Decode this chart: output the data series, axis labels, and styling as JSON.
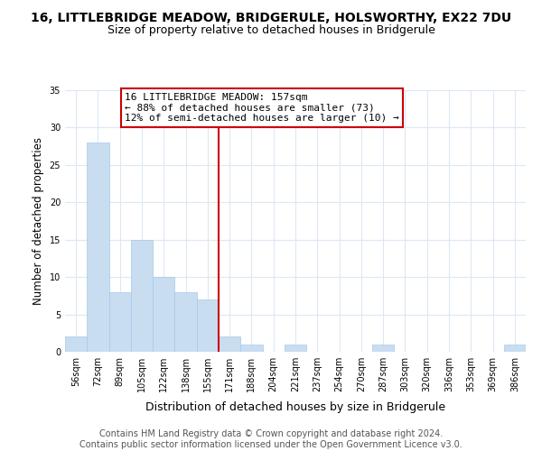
{
  "title": "16, LITTLEBRIDGE MEADOW, BRIDGERULE, HOLSWORTHY, EX22 7DU",
  "subtitle": "Size of property relative to detached houses in Bridgerule",
  "xlabel": "Distribution of detached houses by size in Bridgerule",
  "ylabel": "Number of detached properties",
  "bin_labels": [
    "56sqm",
    "72sqm",
    "89sqm",
    "105sqm",
    "122sqm",
    "138sqm",
    "155sqm",
    "171sqm",
    "188sqm",
    "204sqm",
    "221sqm",
    "237sqm",
    "254sqm",
    "270sqm",
    "287sqm",
    "303sqm",
    "320sqm",
    "336sqm",
    "353sqm",
    "369sqm",
    "386sqm"
  ],
  "bar_heights": [
    2,
    28,
    8,
    15,
    10,
    8,
    7,
    2,
    1,
    0,
    1,
    0,
    0,
    0,
    1,
    0,
    0,
    0,
    0,
    0,
    1
  ],
  "bar_color": "#c8ddf0",
  "bar_edge_color": "#a8c8e8",
  "highlight_line_bin_index": 6.5,
  "ylim": [
    0,
    35
  ],
  "yticks": [
    0,
    5,
    10,
    15,
    20,
    25,
    30,
    35
  ],
  "annotation_box_text": "16 LITTLEBRIDGE MEADOW: 157sqm\n← 88% of detached houses are smaller (73)\n12% of semi-detached houses are larger (10) →",
  "annotation_box_edge_color": "#cc0000",
  "annotation_box_bg": "#ffffff",
  "highlight_line_color": "#cc0000",
  "footer_line1": "Contains HM Land Registry data © Crown copyright and database right 2024.",
  "footer_line2": "Contains public sector information licensed under the Open Government Licence v3.0.",
  "grid_color": "#dce8f5",
  "title_fontsize": 10,
  "subtitle_fontsize": 9,
  "xlabel_fontsize": 9,
  "ylabel_fontsize": 8.5,
  "tick_fontsize": 7,
  "annotation_fontsize": 8,
  "footer_fontsize": 7
}
